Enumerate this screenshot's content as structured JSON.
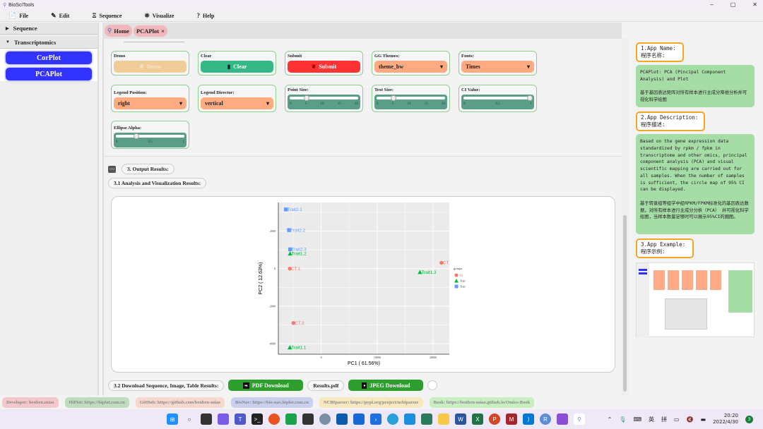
{
  "window": {
    "title": "BioSciTools",
    "min": "–",
    "max": "▢",
    "close": "✕"
  },
  "menu": [
    {
      "label": "File",
      "icon": "📄"
    },
    {
      "label": "Edit",
      "icon": "✎"
    },
    {
      "label": "Sequence",
      "icon": "Ξ"
    },
    {
      "label": "Visualize",
      "icon": "⛯"
    },
    {
      "label": "Help",
      "icon": "?"
    }
  ],
  "sidebar": {
    "sections": [
      {
        "label": "Sequence",
        "arrow": "▶"
      },
      {
        "label": "Transcriptomics",
        "arrow": "▼"
      }
    ],
    "items": [
      "CorPlot",
      "PCAPlot"
    ]
  },
  "tabs": [
    {
      "label": "Home"
    },
    {
      "label": "PCAPlot",
      "close": "×"
    }
  ],
  "controls": {
    "demo": {
      "label": "Demo",
      "button": "Demo"
    },
    "clear": {
      "label": "Clear",
      "button": "Clear"
    },
    "submit": {
      "label": "Submit",
      "button": "Submit"
    },
    "gg_themes": {
      "label": "GG Themes:",
      "value": "theme_bw"
    },
    "fonts": {
      "label": "Fonts:",
      "value": "Times"
    },
    "legend_position": {
      "label": "Legend Position:",
      "value": "right"
    },
    "legend_director": {
      "label": "Legend Director:",
      "value": "vertical"
    },
    "point_size": {
      "label": "Point Size:",
      "value": 5,
      "min": 0,
      "max": 20,
      "ticks": [
        "0",
        "5",
        "10",
        "15",
        "20"
      ]
    },
    "text_size": {
      "label": "Text Size:",
      "value": 5,
      "min": 0,
      "max": 20,
      "ticks": [
        "0",
        "5",
        "10",
        "15",
        "20"
      ]
    },
    "ci_value": {
      "label": "CI Value:",
      "value": 1,
      "min": 0,
      "max": 1,
      "ticks": [
        "0",
        "0.5",
        "1"
      ]
    },
    "ellipse_alpha": {
      "label": "Ellipse Alpha:",
      "value": 0.3,
      "min": 0,
      "max": 1,
      "ticks": [
        "0",
        "0.5",
        "1"
      ]
    }
  },
  "output": {
    "title": "3. Output Results:",
    "sub1": "3.1 Analysis and Visualization Results:",
    "sub2": "3.2 Download Sequence, Image, Table Results:",
    "pdf": "PDF Download",
    "pdf_name": "Results.pdf",
    "jpeg": "JPEG Download"
  },
  "chart_data": {
    "type": "scatter",
    "xlabel": "PC1 ( 61.56%)",
    "ylabel": "PC2 ( 12.63%)",
    "xlim": [
      -7650,
      22900
    ],
    "ylim": [
      -4560,
      3520
    ],
    "xticks": [
      0,
      10000,
      20000
    ],
    "xtick_labels": [
      "0",
      "10000",
      "20000"
    ],
    "yticks": [
      2000,
      0,
      -2000,
      -4000
    ],
    "ytick_labels": [
      "2000",
      "0",
      "-2000",
      "-4000"
    ],
    "grid": true,
    "legend_position": "right",
    "legend_title": "groups",
    "series": [
      {
        "name": "CT",
        "color": "#f8766d",
        "shape": "circle",
        "points": [
          {
            "label": "CT.1",
            "x": -5600,
            "y": 0
          },
          {
            "label": "CT.3",
            "x": -4960,
            "y": -2900
          },
          {
            "label": "CT",
            "x": 21500,
            "y": 310
          }
        ]
      },
      {
        "name": "Trait1",
        "color": "#00ba38",
        "shape": "triangle",
        "points": [
          {
            "label": "Trait1.1",
            "x": -5600,
            "y": -4200
          },
          {
            "label": "Trait1.2",
            "x": -5550,
            "y": 800
          },
          {
            "label": "Trait1.3",
            "x": 17650,
            "y": -190
          }
        ]
      },
      {
        "name": "Trait2",
        "color": "#619cff",
        "shape": "square",
        "points": [
          {
            "label": "Trait2.1",
            "x": -6300,
            "y": 3150
          },
          {
            "label": "Trait2.2",
            "x": -5750,
            "y": 2050
          },
          {
            "label": "Trait2.3",
            "x": -5550,
            "y": 1025
          }
        ]
      }
    ],
    "legend_labels": [
      "Ct",
      "Trait",
      "Trait"
    ]
  },
  "right": {
    "h1": "1.App Name:",
    "h1_cn": "程序名称:",
    "name_text": "PCAPlot: PCA (Pincipal Component Analysis) and Plot\n\n基于基因表达矩阵对所有样本进行主成分降维分析并可视化科学绘图",
    "h2": "2.App Description:",
    "h2_cn": "程序描述:",
    "desc_text": "Based on the gene expression data standardized by rpkm / fpkm in transcriptome and other omics, principal component analysis (PCA) and visual scientific mapping are carried out for all samples. When the number of samples is sufficient, the circle map of 95% CI can be displayed.\n\n基于转录组等组学中经RPKM/FPKM标准化的基因表达数据，对所有样本进行主成分分析（PCA） 并可视化科学绘图，当样本数量足够时可以展示95%CI的圈图。",
    "h3": "3.App Example:",
    "h3_cn": "程序示例:"
  },
  "footer": [
    {
      "label": "Developer: benben.miao",
      "color": "#f4c7cc"
    },
    {
      "label": "HiPlot: https://hiplot.com.cn",
      "color": "#bfdcbf"
    },
    {
      "label": "GitHub: https://github.com/benben-miao",
      "color": "#f7d8cf"
    },
    {
      "label": "BioNav: https://bio-nav.hiplot.com.cn",
      "color": "#c9cfee"
    },
    {
      "label": "NCBIparser: https://pypi.org/project/ncbiparser",
      "color": "#f8e8bf"
    },
    {
      "label": "Book: https://benben-miao.github.io/Omics-Book",
      "color": "#c9efc0"
    }
  ],
  "taskbar": {
    "time": "20:20",
    "date": "2022/4/30",
    "ime1": "英",
    "ime2": "拼",
    "notif": "3"
  }
}
